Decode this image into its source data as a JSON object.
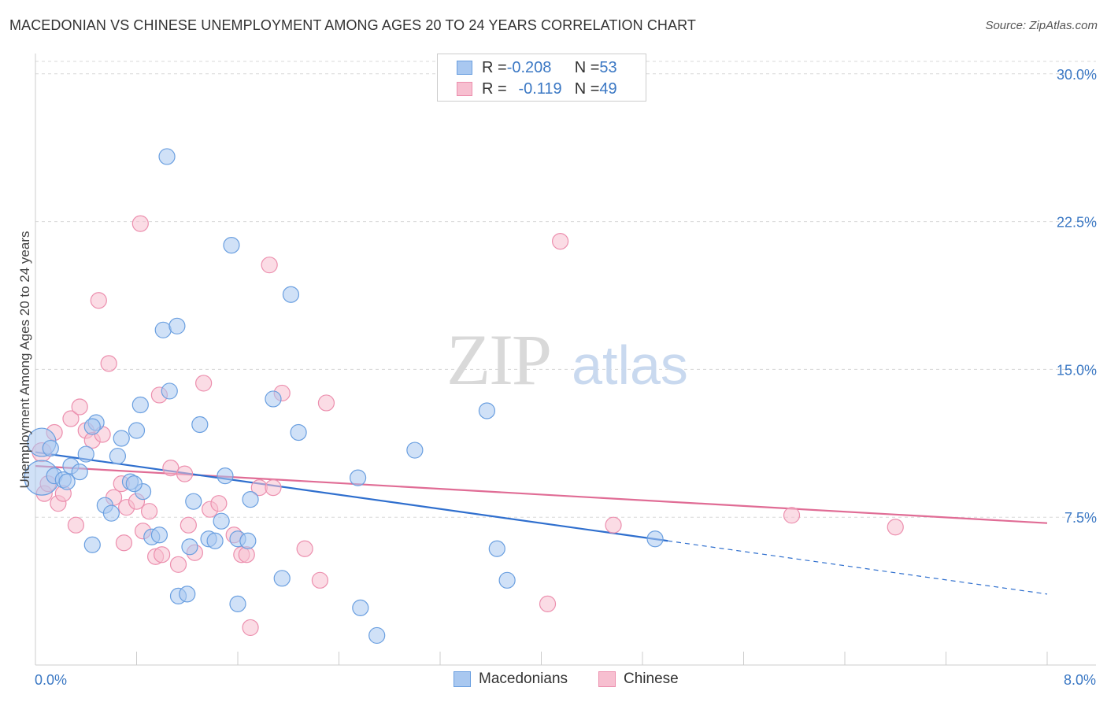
{
  "title": "MACEDONIAN VS CHINESE UNEMPLOYMENT AMONG AGES 20 TO 24 YEARS CORRELATION CHART",
  "source": "Source: ZipAtlas.com",
  "watermark": {
    "zip": "ZIP",
    "atlas": "atlas"
  },
  "legend_top": {
    "rows": [
      {
        "r_label": "R = ",
        "r_value": "-0.208",
        "n_label": "N = ",
        "n_value": "53"
      },
      {
        "r_label": "R = ",
        "r_value": "-0.119",
        "n_label": "N = ",
        "n_value": "49"
      }
    ]
  },
  "legend_bottom": {
    "items": [
      "Macedonians",
      "Chinese"
    ]
  },
  "colors": {
    "macedonians_fill": "#a9c8f0",
    "macedonians_stroke": "#6a9fe0",
    "macedonians_line": "#2f6fce",
    "chinese_fill": "#f7bfd0",
    "chinese_stroke": "#ec8fae",
    "chinese_line": "#e06c95",
    "tick_label": "#3b78c4",
    "grid": "#d8d8d8"
  },
  "chart_data": {
    "type": "scatter",
    "title": "MACEDONIAN VS CHINESE UNEMPLOYMENT AMONG AGES 20 TO 24 YEARS CORRELATION CHART",
    "xlabel": "",
    "ylabel": "Unemployment Among Ages 20 to 24 years",
    "xlim": [
      0,
      8
    ],
    "ylim": [
      0,
      30.75
    ],
    "x_tick_labels": [
      "0.0%",
      "8.0%"
    ],
    "y_ticks": [
      7.5,
      15.0,
      22.5,
      30.0
    ],
    "y_tick_labels": [
      "7.5%",
      "15.0%",
      "22.5%",
      "30.0%"
    ],
    "grid": true,
    "series": [
      {
        "name": "Macedonians",
        "R": -0.208,
        "N": 53,
        "trend": {
          "x0": 0.0,
          "y0": 10.8,
          "x1": 5.0,
          "y1": 6.3,
          "dash_to_x": 8.0,
          "dash_to_y": 3.6
        },
        "points": [
          [
            0.05,
            11.3,
            18
          ],
          [
            0.12,
            11.0,
            10
          ],
          [
            0.05,
            9.5,
            22
          ],
          [
            0.15,
            9.6,
            10
          ],
          [
            0.22,
            9.4,
            10
          ],
          [
            0.28,
            10.1,
            10
          ],
          [
            0.35,
            9.8,
            10
          ],
          [
            0.4,
            10.7,
            10
          ],
          [
            0.48,
            12.3,
            10
          ],
          [
            0.45,
            12.1,
            10
          ],
          [
            0.55,
            8.1,
            10
          ],
          [
            0.6,
            7.7,
            10
          ],
          [
            0.65,
            10.6,
            10
          ],
          [
            0.68,
            11.5,
            10
          ],
          [
            0.75,
            9.3,
            10
          ],
          [
            0.8,
            11.9,
            10
          ],
          [
            0.83,
            13.2,
            10
          ],
          [
            0.85,
            8.8,
            10
          ],
          [
            0.92,
            6.5,
            10
          ],
          [
            0.98,
            6.6,
            10
          ],
          [
            1.01,
            17.0,
            10
          ],
          [
            1.04,
            25.8,
            10
          ],
          [
            1.06,
            13.9,
            10
          ],
          [
            1.12,
            17.2,
            10
          ],
          [
            1.13,
            3.5,
            10
          ],
          [
            1.2,
            3.6,
            10
          ],
          [
            1.22,
            6.0,
            10
          ],
          [
            1.25,
            8.3,
            10
          ],
          [
            1.3,
            12.2,
            10
          ],
          [
            1.37,
            6.4,
            10
          ],
          [
            1.42,
            6.3,
            10
          ],
          [
            1.47,
            7.3,
            10
          ],
          [
            1.5,
            9.6,
            10
          ],
          [
            1.55,
            21.3,
            10
          ],
          [
            1.6,
            3.1,
            10
          ],
          [
            1.6,
            6.4,
            10
          ],
          [
            1.68,
            6.3,
            10
          ],
          [
            1.7,
            8.4,
            10
          ],
          [
            1.88,
            13.5,
            10
          ],
          [
            1.95,
            4.4,
            10
          ],
          [
            2.02,
            18.8,
            10
          ],
          [
            2.08,
            11.8,
            10
          ],
          [
            0.25,
            9.3,
            10
          ],
          [
            0.45,
            6.1,
            10
          ],
          [
            0.78,
            9.2,
            10
          ],
          [
            2.55,
            9.5,
            10
          ],
          [
            2.57,
            2.9,
            10
          ],
          [
            2.7,
            1.5,
            10
          ],
          [
            3.0,
            10.9,
            10
          ],
          [
            3.57,
            12.9,
            10
          ],
          [
            3.65,
            5.9,
            10
          ],
          [
            3.73,
            4.3,
            10
          ],
          [
            4.9,
            6.4,
            10
          ]
        ]
      },
      {
        "name": "Chinese",
        "R": -0.119,
        "N": 49,
        "trend": {
          "x0": 0.0,
          "y0": 10.1,
          "x1": 8.0,
          "y1": 7.2
        },
        "points": [
          [
            0.05,
            10.8,
            12
          ],
          [
            0.07,
            8.7,
            10
          ],
          [
            0.1,
            9.2,
            10
          ],
          [
            0.15,
            11.8,
            10
          ],
          [
            0.18,
            8.2,
            10
          ],
          [
            0.22,
            8.7,
            10
          ],
          [
            0.28,
            12.5,
            10
          ],
          [
            0.32,
            7.1,
            10
          ],
          [
            0.35,
            13.1,
            10
          ],
          [
            0.4,
            11.9,
            10
          ],
          [
            0.45,
            11.4,
            10
          ],
          [
            0.5,
            18.5,
            10
          ],
          [
            0.53,
            11.7,
            10
          ],
          [
            0.58,
            15.3,
            10
          ],
          [
            0.62,
            8.5,
            10
          ],
          [
            0.68,
            9.2,
            10
          ],
          [
            0.7,
            6.2,
            10
          ],
          [
            0.72,
            8.0,
            10
          ],
          [
            0.8,
            8.3,
            10
          ],
          [
            0.83,
            22.4,
            10
          ],
          [
            0.85,
            6.8,
            10
          ],
          [
            0.9,
            7.8,
            10
          ],
          [
            0.95,
            5.5,
            10
          ],
          [
            0.98,
            13.7,
            10
          ],
          [
            1.0,
            5.6,
            10
          ],
          [
            1.07,
            10.0,
            10
          ],
          [
            1.13,
            5.1,
            10
          ],
          [
            1.18,
            9.7,
            10
          ],
          [
            1.21,
            7.1,
            10
          ],
          [
            1.26,
            5.7,
            10
          ],
          [
            1.33,
            14.3,
            10
          ],
          [
            1.38,
            7.9,
            10
          ],
          [
            1.45,
            8.2,
            10
          ],
          [
            1.57,
            6.6,
            10
          ],
          [
            1.63,
            5.6,
            10
          ],
          [
            1.67,
            5.6,
            10
          ],
          [
            1.7,
            1.9,
            10
          ],
          [
            1.77,
            9.0,
            10
          ],
          [
            1.85,
            20.3,
            10
          ],
          [
            1.88,
            9.0,
            10
          ],
          [
            1.95,
            13.8,
            10
          ],
          [
            2.13,
            5.9,
            10
          ],
          [
            2.25,
            4.3,
            10
          ],
          [
            2.3,
            13.3,
            10
          ],
          [
            4.05,
            3.1,
            10
          ],
          [
            4.15,
            21.5,
            10
          ],
          [
            4.57,
            7.1,
            10
          ],
          [
            5.98,
            7.6,
            10
          ],
          [
            6.8,
            7.0,
            10
          ]
        ]
      }
    ]
  }
}
